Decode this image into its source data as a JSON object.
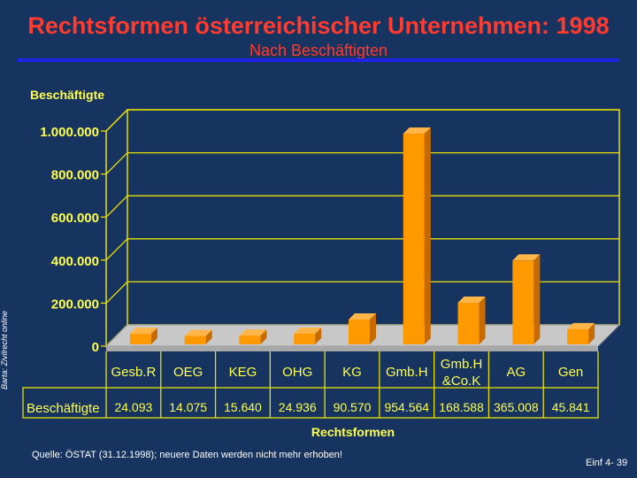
{
  "slide": {
    "title": "Rechtsformen österreichischer Unternehmen: 1998",
    "subtitle": "Nach Beschäftigten",
    "side_label": "Barta: Zivilrecht online",
    "source": "Quelle: ÖSTAT (31.12.1998); neuere Daten werden nicht mehr erhoben!",
    "page_number": "Einf 4- 39"
  },
  "colors": {
    "background": "#17335f",
    "title": "#ff3b30",
    "rule": "#1f23e8",
    "axis_text": "#ffff4d",
    "grid": "#e8e000",
    "bar_front": "#ff9900",
    "bar_side": "#c76a00",
    "bar_top": "#ffb547",
    "floor": "#c8c8c8"
  },
  "chart_data": {
    "type": "bar",
    "title": "",
    "ylabel": "Beschäftigte",
    "xlabel": "Rechtsformen",
    "ylim": [
      0,
      1000000
    ],
    "yticks": [
      0,
      200000,
      400000,
      600000,
      800000,
      1000000
    ],
    "ytick_labels": [
      "0",
      "200.000",
      "400.000",
      "600.000",
      "800.000",
      "1.000.000"
    ],
    "categories": [
      "GesbR",
      "OEG",
      "KEG",
      "OHG",
      "KG",
      "GmbH",
      "GmbH & Co.KG",
      "AG",
      "Gen"
    ],
    "category_labels": [
      [
        "Gesb.R"
      ],
      [
        "OEG"
      ],
      [
        "KEG"
      ],
      [
        "OHG"
      ],
      [
        "KG"
      ],
      [
        "Gmb.H"
      ],
      [
        "Gmb.H",
        "&Co.K"
      ],
      [
        "AG"
      ],
      [
        "Gen"
      ]
    ],
    "series": [
      {
        "name": "Beschäftigte",
        "values": [
          24093,
          14075,
          15640,
          24936,
          90570,
          954564,
          168588,
          365008,
          45841
        ],
        "labels": [
          "24.093",
          "14.075",
          "15.640",
          "24.936",
          "90.570",
          "954.564",
          "168.588",
          "365.008",
          "45.841"
        ]
      }
    ],
    "table_row_label": "Beschäftigte"
  }
}
